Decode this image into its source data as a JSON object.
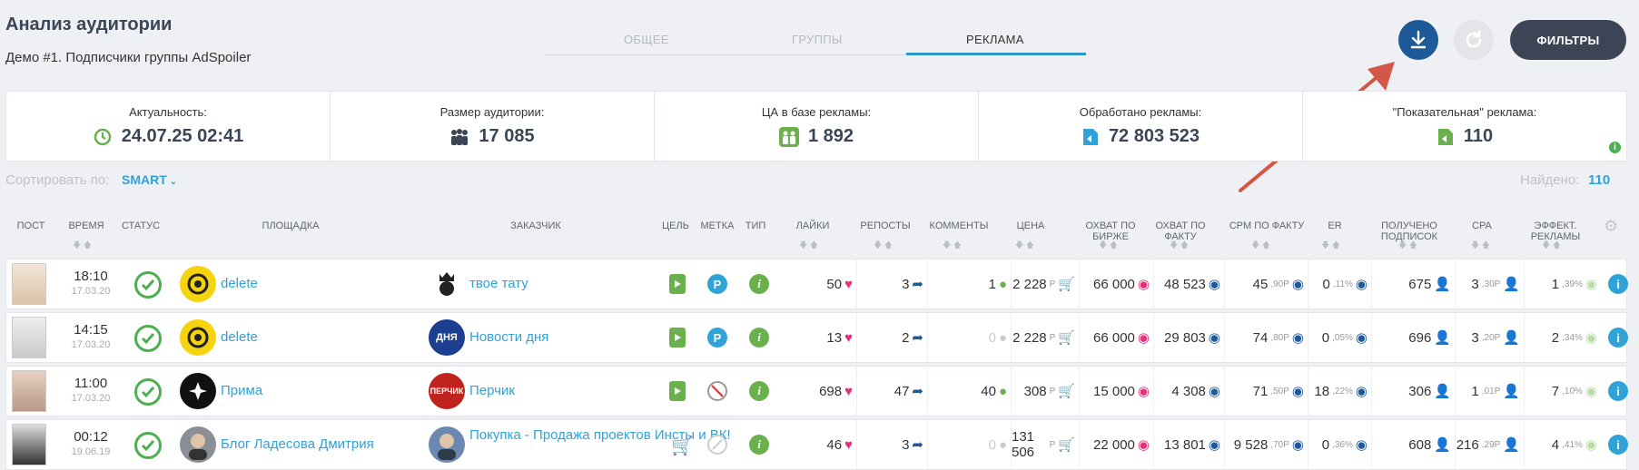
{
  "header": {
    "title": "Анализ аудитории",
    "subtitle": "Демо #1. Подписчики группы AdSpoiler",
    "tabs": [
      "ОБЩЕЕ",
      "ГРУППЫ",
      "РЕКЛАМА"
    ],
    "active_tab": "РЕКЛАМА",
    "filters_label": "ФИЛЬТРЫ"
  },
  "stats": [
    {
      "label": "Актуальность:",
      "value": "24.07.25 02:41",
      "icon": "history-icon"
    },
    {
      "label": "Размер аудитории:",
      "value": "17 085",
      "icon": "people-icon"
    },
    {
      "label": "ЦА в базе рекламы:",
      "value": "1 892",
      "icon": "target-people-icon"
    },
    {
      "label": "Обработано рекламы:",
      "value": "72 803 523",
      "icon": "ad-icon"
    },
    {
      "label": "\"Показательная\" реклама:",
      "value": "110",
      "icon": "showcase-ad-icon"
    }
  ],
  "sort": {
    "label": "Сортировать по:",
    "value": "SMART"
  },
  "found": {
    "label": "Найдено:",
    "value": "110"
  },
  "columns": [
    "ПОСТ",
    "ВРЕМЯ",
    "СТАТУС",
    "ПЛОЩАДКА",
    "ЗАКАЗЧИК",
    "ЦЕЛЬ",
    "МЕТКА",
    "ТИП",
    "ЛАЙКИ",
    "РЕПОСТЫ",
    "КОММЕНТЫ",
    "ЦЕНА",
    "ОХВАТ ПО БИРЖЕ",
    "ОХВАТ ПО ФАКТУ",
    "CPM ПО ФАКТУ",
    "ER",
    "ПОЛУЧЕНО ПОДПИСОК",
    "CPA",
    "ЭФФЕКТ. РЕКЛАМЫ"
  ],
  "rows": [
    {
      "time": "18:10",
      "date": "17.03.20",
      "platform": "delete",
      "customer": "твое тату",
      "mark": "P",
      "likes": "50",
      "reposts": "3",
      "comments": "1",
      "price": "2 228",
      "price_unit": "Р",
      "reach_exchange": "66 000",
      "reach_fact": "48 523",
      "cpm_main": "45",
      "cpm_frac": ",90Р",
      "er_main": "0",
      "er_frac": ",11%",
      "subs": "675",
      "cpa_main": "3",
      "cpa_frac": ",30Р",
      "eff_main": "1",
      "eff_frac": ",39%"
    },
    {
      "time": "14:15",
      "date": "17.03.20",
      "platform": "delete",
      "customer": "Новости дня",
      "mark": "P",
      "likes": "13",
      "reposts": "2",
      "comments": "0",
      "price": "2 228",
      "price_unit": "Р",
      "reach_exchange": "66 000",
      "reach_fact": "29 803",
      "cpm_main": "74",
      "cpm_frac": ",80Р",
      "er_main": "0",
      "er_frac": ",05%",
      "subs": "696",
      "cpa_main": "3",
      "cpa_frac": ",20Р",
      "eff_main": "2",
      "eff_frac": ",34%"
    },
    {
      "time": "11:00",
      "date": "17.03.20",
      "platform": "Прима",
      "customer": "Перчик",
      "mark": "",
      "likes": "698",
      "reposts": "47",
      "comments": "40",
      "price": "308",
      "price_unit": "Р",
      "reach_exchange": "15 000",
      "reach_fact": "4 308",
      "cpm_main": "71",
      "cpm_frac": ",50Р",
      "er_main": "18",
      "er_frac": ",22%",
      "subs": "306",
      "cpa_main": "1",
      "cpa_frac": ",01Р",
      "eff_main": "7",
      "eff_frac": ",10%"
    },
    {
      "time": "00:12",
      "date": "19.06.19",
      "platform": "Блог Ладесова Дмитрия",
      "customer": "Покупка - Продажа проектов Инсты и ВК!",
      "mark": "",
      "likes": "46",
      "reposts": "3",
      "comments": "0",
      "price": "131 506",
      "price_unit": "Р",
      "reach_exchange": "22 000",
      "reach_fact": "13 801",
      "cpm_main": "9 528",
      "cpm_frac": ",70Р",
      "er_main": "0",
      "er_frac": ",36%",
      "subs": "608",
      "cpa_main": "216",
      "cpa_frac": ",29Р",
      "eff_main": "4",
      "eff_frac": ",41%"
    }
  ],
  "colors": {
    "accent": "#2fa3d8",
    "dark": "#3b4556",
    "green": "#6ab04c",
    "pink": "#e6307a",
    "navy": "#1f5a98"
  }
}
